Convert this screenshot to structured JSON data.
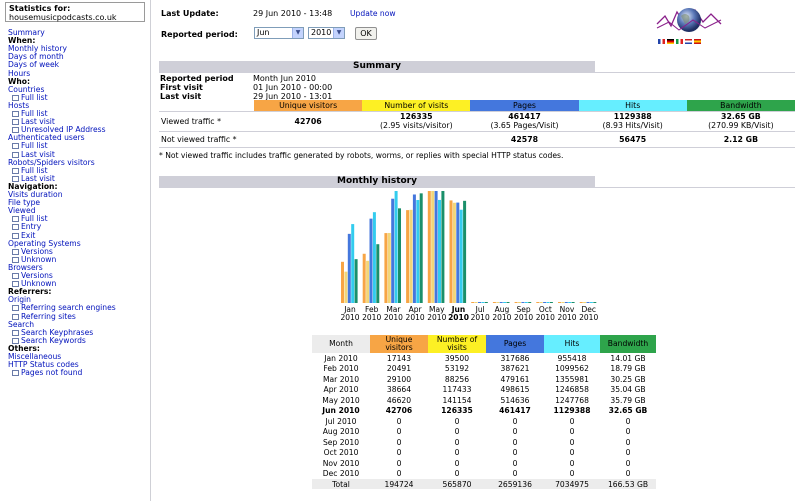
{
  "nav": {
    "stats_for_label": "Statistics for:",
    "site": "housemusicpodcasts.co.uk",
    "items": [
      {
        "text": "Summary",
        "type": "link",
        "sub": false
      },
      {
        "text": "When:",
        "type": "header",
        "sub": false
      },
      {
        "text": "Monthly history",
        "type": "link",
        "sub": false
      },
      {
        "text": "Days of month",
        "type": "link",
        "sub": false
      },
      {
        "text": "Days of week",
        "type": "link",
        "sub": false
      },
      {
        "text": "Hours",
        "type": "link",
        "sub": false
      },
      {
        "text": "Who:",
        "type": "header",
        "sub": false
      },
      {
        "text": "Countries",
        "type": "link",
        "sub": false
      },
      {
        "text": "Full list",
        "type": "link",
        "sub": true
      },
      {
        "text": "Hosts",
        "type": "link",
        "sub": false
      },
      {
        "text": "Full list",
        "type": "link",
        "sub": true
      },
      {
        "text": "Last visit",
        "type": "link",
        "sub": true
      },
      {
        "text": "Unresolved IP Address",
        "type": "link",
        "sub": true
      },
      {
        "text": "Authenticated users",
        "type": "link",
        "sub": false
      },
      {
        "text": "Full list",
        "type": "link",
        "sub": true
      },
      {
        "text": "Last visit",
        "type": "link",
        "sub": true
      },
      {
        "text": "Robots/Spiders visitors",
        "type": "link",
        "sub": false
      },
      {
        "text": "Full list",
        "type": "link",
        "sub": true
      },
      {
        "text": "Last visit",
        "type": "link",
        "sub": true
      },
      {
        "text": "Navigation:",
        "type": "header",
        "sub": false
      },
      {
        "text": "Visits duration",
        "type": "link",
        "sub": false
      },
      {
        "text": "File type",
        "type": "link",
        "sub": false
      },
      {
        "text": "Viewed",
        "type": "link",
        "sub": false
      },
      {
        "text": "Full list",
        "type": "link",
        "sub": true
      },
      {
        "text": "Entry",
        "type": "link",
        "sub": true
      },
      {
        "text": "Exit",
        "type": "link",
        "sub": true
      },
      {
        "text": "Operating Systems",
        "type": "link",
        "sub": false
      },
      {
        "text": "Versions",
        "type": "link",
        "sub": true
      },
      {
        "text": "Unknown",
        "type": "link",
        "sub": true
      },
      {
        "text": "Browsers",
        "type": "link",
        "sub": false
      },
      {
        "text": "Versions",
        "type": "link",
        "sub": true
      },
      {
        "text": "Unknown",
        "type": "link",
        "sub": true
      },
      {
        "text": "Referrers:",
        "type": "header",
        "sub": false
      },
      {
        "text": "Origin",
        "type": "link",
        "sub": false
      },
      {
        "text": "Referring search engines",
        "type": "link",
        "sub": true
      },
      {
        "text": "Referring sites",
        "type": "link",
        "sub": true
      },
      {
        "text": "Search",
        "type": "link",
        "sub": false
      },
      {
        "text": "Search Keyphrases",
        "type": "link",
        "sub": true
      },
      {
        "text": "Search Keywords",
        "type": "link",
        "sub": true
      },
      {
        "text": "Others:",
        "type": "header",
        "sub": false
      },
      {
        "text": "Miscellaneous",
        "type": "link",
        "sub": false
      },
      {
        "text": "HTTP Status codes",
        "type": "link",
        "sub": false
      },
      {
        "text": "Pages not found",
        "type": "link",
        "sub": true
      }
    ]
  },
  "top": {
    "last_update_label": "Last Update:",
    "last_update_value": "29 Jun 2010 - 13:48",
    "update_now": "Update now",
    "reported_period_label": "Reported period:",
    "month_value": "Jun",
    "year_value": "2010",
    "ok_label": "OK"
  },
  "summary": {
    "title": "Summary",
    "reported_period_label": "Reported period",
    "reported_period_value": "Month Jun 2010",
    "first_visit_label": "First visit",
    "first_visit_value": "01 Jun 2010 - 00:00",
    "last_visit_label": "Last visit",
    "last_visit_value": "29 Jun 2010 - 13:01",
    "headers": [
      "Unique visitors",
      "Number of visits",
      "Pages",
      "Hits",
      "Bandwidth"
    ],
    "viewed_label": "Viewed traffic *",
    "viewed": [
      "42706",
      "126335",
      "461417",
      "1129388",
      "32.65 GB"
    ],
    "viewed_sub": [
      "",
      "(2.95 visits/visitor)",
      "(3.65 Pages/Visit)",
      "(8.93 Hits/Visit)",
      "(270.99 KB/Visit)"
    ],
    "not_viewed_label": "Not viewed traffic *",
    "not_viewed": [
      "",
      "",
      "42578",
      "56475",
      "2.12 GB"
    ],
    "footnote": "* Not viewed traffic includes traffic generated by robots, worms, or replies with special HTTP status codes."
  },
  "history": {
    "title": "Monthly history",
    "col_headers": [
      "Month",
      "Unique visitors",
      "Number of visits",
      "Pages",
      "Hits",
      "Bandwidth"
    ],
    "rows": [
      {
        "month": "Jan 2010",
        "uv": "17143",
        "nv": "39500",
        "pg": "317686",
        "ht": "955418",
        "bw": "14.01 GB",
        "bold": false
      },
      {
        "month": "Feb 2010",
        "uv": "20491",
        "nv": "53192",
        "pg": "387621",
        "ht": "1099562",
        "bw": "18.79 GB",
        "bold": false
      },
      {
        "month": "Mar 2010",
        "uv": "29100",
        "nv": "88256",
        "pg": "479161",
        "ht": "1355981",
        "bw": "30.25 GB",
        "bold": false
      },
      {
        "month": "Apr 2010",
        "uv": "38664",
        "nv": "117433",
        "pg": "498615",
        "ht": "1246858",
        "bw": "35.04 GB",
        "bold": false
      },
      {
        "month": "May 2010",
        "uv": "46620",
        "nv": "141154",
        "pg": "514636",
        "ht": "1247768",
        "bw": "35.79 GB",
        "bold": false
      },
      {
        "month": "Jun 2010",
        "uv": "42706",
        "nv": "126335",
        "pg": "461417",
        "ht": "1129388",
        "bw": "32.65 GB",
        "bold": true
      },
      {
        "month": "Jul 2010",
        "uv": "0",
        "nv": "0",
        "pg": "0",
        "ht": "0",
        "bw": "0",
        "bold": false
      },
      {
        "month": "Aug 2010",
        "uv": "0",
        "nv": "0",
        "pg": "0",
        "ht": "0",
        "bw": "0",
        "bold": false
      },
      {
        "month": "Sep 2010",
        "uv": "0",
        "nv": "0",
        "pg": "0",
        "ht": "0",
        "bw": "0",
        "bold": false
      },
      {
        "month": "Oct 2010",
        "uv": "0",
        "nv": "0",
        "pg": "0",
        "ht": "0",
        "bw": "0",
        "bold": false
      },
      {
        "month": "Nov 2010",
        "uv": "0",
        "nv": "0",
        "pg": "0",
        "ht": "0",
        "bw": "0",
        "bold": false
      },
      {
        "month": "Dec 2010",
        "uv": "0",
        "nv": "0",
        "pg": "0",
        "ht": "0",
        "bw": "0",
        "bold": false
      }
    ],
    "total": {
      "label": "Total",
      "uv": "194724",
      "nv": "565870",
      "pg": "2659136",
      "ht": "7034975",
      "bw": "166.53 GB"
    }
  },
  "chart_data": {
    "type": "bar",
    "categories": [
      "Jan",
      "Feb",
      "Mar",
      "Apr",
      "May",
      "Jun",
      "Jul",
      "Aug",
      "Sep",
      "Oct",
      "Nov",
      "Dec"
    ],
    "category_years": [
      "2010",
      "2010",
      "2010",
      "2010",
      "2010",
      "2010",
      "2010",
      "2010",
      "2010",
      "2010",
      "2010",
      "2010"
    ],
    "highlight_index": 5,
    "series": [
      {
        "key": "uv",
        "values": [
          17143,
          20491,
          29100,
          38664,
          46620,
          42706,
          0,
          0,
          0,
          0,
          0,
          0
        ]
      },
      {
        "key": "nv",
        "values": [
          39500,
          53192,
          88256,
          117433,
          141154,
          126335,
          0,
          0,
          0,
          0,
          0,
          0
        ]
      },
      {
        "key": "pg",
        "values": [
          317686,
          387621,
          479161,
          498615,
          514636,
          461417,
          0,
          0,
          0,
          0,
          0,
          0
        ]
      },
      {
        "key": "ht",
        "values": [
          955418,
          1099562,
          1355981,
          1246858,
          1247768,
          1129388,
          0,
          0,
          0,
          0,
          0,
          0
        ]
      },
      {
        "key": "bw",
        "values": [
          14.01,
          18.79,
          30.25,
          35.04,
          35.79,
          32.65,
          0,
          0,
          0,
          0,
          0,
          0
        ]
      }
    ],
    "colors": {
      "uv": "#f7a545",
      "nv": "#f2d679",
      "pg": "#4477dd",
      "ht": "#33ccee",
      "bw": "#1a8f6a"
    }
  },
  "flags": [
    {
      "name": "fr",
      "colors": [
        "#2244aa",
        "#ffffff",
        "#dd2222"
      ],
      "dir": "v"
    },
    {
      "name": "de",
      "colors": [
        "#000000",
        "#dd0000",
        "#ffcc00"
      ],
      "dir": "h"
    },
    {
      "name": "it",
      "colors": [
        "#119944",
        "#ffffff",
        "#dd2222"
      ],
      "dir": "v"
    },
    {
      "name": "nl",
      "colors": [
        "#cc2222",
        "#ffffff",
        "#2244aa"
      ],
      "dir": "h"
    },
    {
      "name": "es",
      "colors": [
        "#cc1111",
        "#ffcc00",
        "#cc1111"
      ],
      "dir": "h"
    }
  ]
}
